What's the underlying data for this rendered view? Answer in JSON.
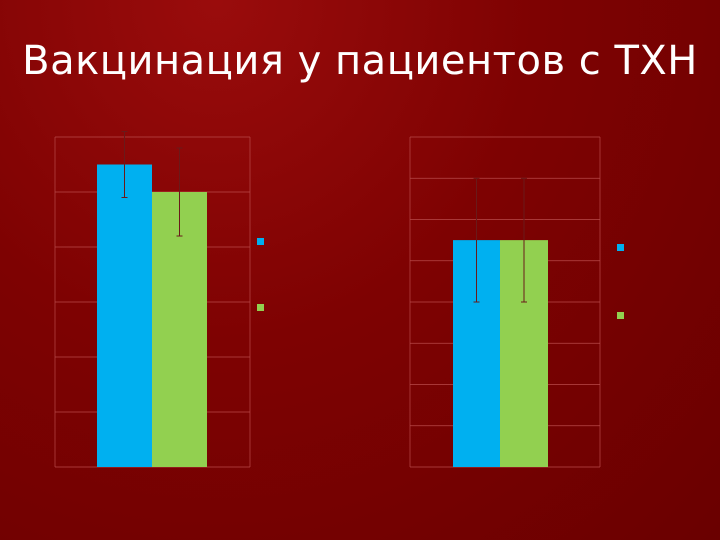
{
  "slide": {
    "title": "Вакцинация у пациентов с ТХН"
  },
  "colors": {
    "series_blue": "#00b0f0",
    "series_green": "#92d050",
    "grid": "#b84a4a",
    "text_faint": "#9a2a2a"
  },
  "chart_data": [
    {
      "type": "bar",
      "categories": [
        ""
      ],
      "series": [
        {
          "values": [
            5.5
          ],
          "error": [
            0.6
          ]
        },
        {
          "values": [
            5.0
          ],
          "error": [
            0.8
          ]
        }
      ],
      "ylabel": "",
      "ylim": [
        0,
        6
      ],
      "ytick_labels": [
        "",
        "",
        "",
        "",
        "",
        "",
        ""
      ],
      "legend": {
        "placement": "right",
        "entries": [
          "",
          ""
        ]
      }
    },
    {
      "type": "bar",
      "categories": [
        ""
      ],
      "series": [
        {
          "values": [
            5.5
          ],
          "error": [
            1.5
          ]
        },
        {
          "values": [
            5.5
          ],
          "error": [
            1.5
          ]
        }
      ],
      "ylabel": "",
      "ylim": [
        0,
        8
      ],
      "ytick_labels": [
        "",
        "",
        "",
        "",
        "",
        "",
        "",
        "",
        ""
      ],
      "legend": {
        "placement": "right",
        "entries": [
          "",
          ""
        ]
      }
    }
  ]
}
